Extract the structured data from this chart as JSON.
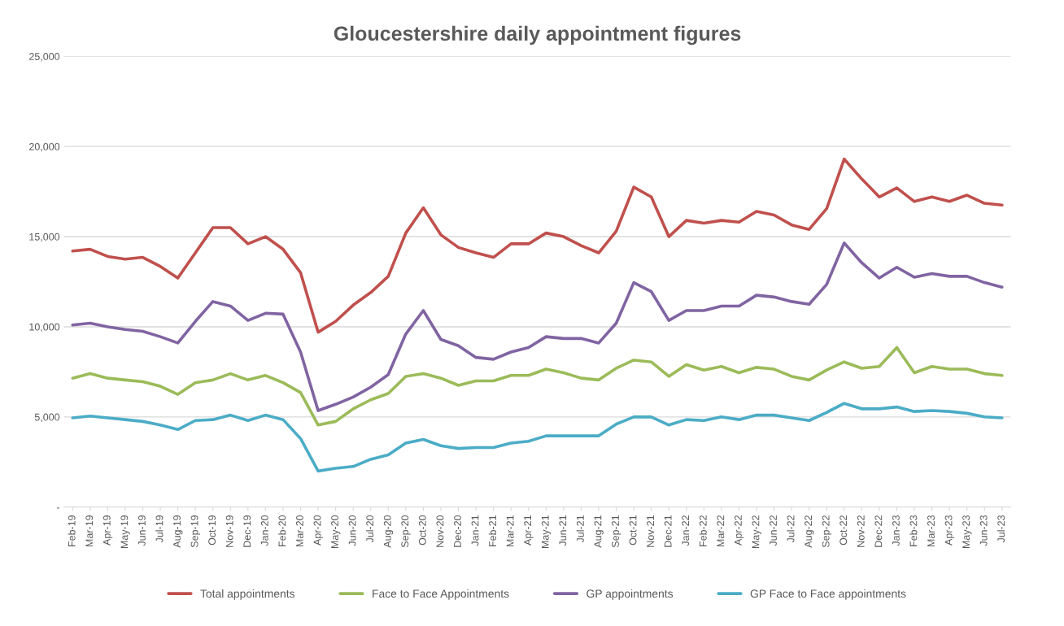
{
  "chart_data": {
    "type": "line",
    "title": "Gloucestershire daily appointment figures",
    "categories": [
      "Feb-19",
      "Mar-19",
      "Apr-19",
      "May-19",
      "Jun-19",
      "Jul-19",
      "Aug-19",
      "Sep-19",
      "Oct-19",
      "Nov-19",
      "Dec-19",
      "Jan-20",
      "Feb-20",
      "Mar-20",
      "Apr-20",
      "May-20",
      "Jun-20",
      "Jul-20",
      "Aug-20",
      "Sep-20",
      "Oct-20",
      "Nov-20",
      "Dec-20",
      "Jan-21",
      "Feb-21",
      "Mar-21",
      "Apr-21",
      "May-21",
      "Jun-21",
      "Jul-21",
      "Aug-21",
      "Sep-21",
      "Oct-21",
      "Nov-21",
      "Dec-21",
      "Jan-22",
      "Feb-22",
      "Mar-22",
      "Apr-22",
      "May-22",
      "Jun-22",
      "Jul-22",
      "Aug-22",
      "Sep-22",
      "Oct-22",
      "Nov-22",
      "Dec-22",
      "Jan-23",
      "Feb-23",
      "Mar-23",
      "Apr-23",
      "May-23",
      "Jun-23",
      "Jul-23"
    ],
    "series": [
      {
        "name": "Total appointments",
        "color": "#c0504d",
        "values": [
          14200,
          14300,
          13900,
          13750,
          13850,
          13350,
          12700,
          14100,
          15500,
          15500,
          14600,
          15000,
          14300,
          13000,
          9700,
          10300,
          11200,
          11900,
          12800,
          15200,
          16600,
          15100,
          14400,
          14100,
          13850,
          14600,
          14600,
          15200,
          15000,
          14500,
          14100,
          15300,
          17750,
          17200,
          15000,
          15900,
          15750,
          15900,
          15800,
          16400,
          16200,
          15650,
          15400,
          16550,
          19300,
          18200,
          17200,
          17700,
          16950,
          17200,
          16950,
          17300,
          16850,
          16750
        ]
      },
      {
        "name": "Face to Face Appointments",
        "color": "#9bbb59",
        "values": [
          7150,
          7400,
          7150,
          7050,
          6950,
          6700,
          6250,
          6900,
          7050,
          7400,
          7050,
          7300,
          6900,
          6350,
          4550,
          4750,
          5450,
          5950,
          6300,
          7250,
          7400,
          7150,
          6750,
          7000,
          7000,
          7300,
          7300,
          7650,
          7450,
          7150,
          7050,
          7700,
          8150,
          8050,
          7250,
          7900,
          7600,
          7800,
          7450,
          7750,
          7650,
          7250,
          7050,
          7600,
          8050,
          7700,
          7800,
          8850,
          7450,
          7800,
          7650,
          7650,
          7400,
          7300
        ]
      },
      {
        "name": "GP appointments",
        "color": "#8064a2",
        "values": [
          10100,
          10200,
          10000,
          9850,
          9750,
          9450,
          9100,
          10300,
          11400,
          11150,
          10350,
          10750,
          10700,
          8600,
          5350,
          5700,
          6100,
          6650,
          7350,
          9600,
          10900,
          9300,
          8950,
          8300,
          8200,
          8600,
          8850,
          9450,
          9350,
          9350,
          9100,
          10200,
          12450,
          11950,
          10350,
          10900,
          10900,
          11150,
          11150,
          11750,
          11650,
          11400,
          11250,
          12350,
          14650,
          13550,
          12700,
          13300,
          12750,
          12950,
          12800,
          12800,
          12450,
          12200
        ]
      },
      {
        "name": "GP Face to Face appointments",
        "color": "#4bacc6",
        "values": [
          4950,
          5050,
          4950,
          4850,
          4750,
          4550,
          4300,
          4800,
          4850,
          5100,
          4800,
          5100,
          4850,
          3800,
          2000,
          2150,
          2250,
          2650,
          2900,
          3550,
          3750,
          3400,
          3250,
          3300,
          3300,
          3550,
          3650,
          3950,
          3950,
          3950,
          3950,
          4600,
          5000,
          5000,
          4550,
          4850,
          4800,
          5000,
          4850,
          5100,
          5100,
          4950,
          4800,
          5250,
          5750,
          5450,
          5450,
          5550,
          5300,
          5350,
          5300,
          5200,
          5000,
          4950
        ]
      }
    ],
    "ylim": [
      0,
      25000
    ],
    "yticks": [
      {
        "value": 0,
        "label": "-"
      },
      {
        "value": 5000,
        "label": "5,000"
      },
      {
        "value": 10000,
        "label": "10,000"
      },
      {
        "value": 15000,
        "label": "15,000"
      },
      {
        "value": 20000,
        "label": "20,000"
      },
      {
        "value": 25000,
        "label": "25,000"
      }
    ],
    "grid": "y",
    "legend": "bottom"
  }
}
